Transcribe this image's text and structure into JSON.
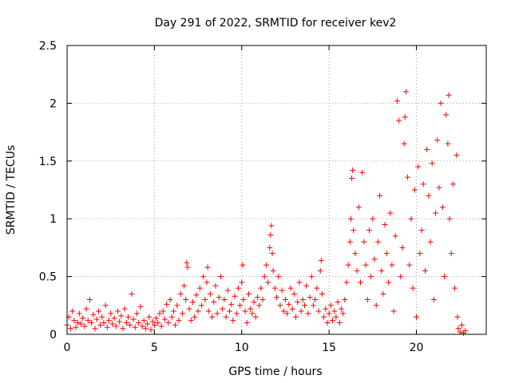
{
  "chart_data": {
    "type": "scatter",
    "title": "Day 291 of 2022, SRMTID for receiver kev2",
    "xlabel": "GPS time / hours",
    "ylabel": "SRMTID / TECUs",
    "xlim": [
      0,
      24
    ],
    "ylim": [
      0,
      2.5
    ],
    "xticks": [
      0,
      5,
      10,
      15,
      20
    ],
    "xtick_labels": [
      "0",
      "5",
      "10",
      "15",
      "20"
    ],
    "yticks": [
      0,
      0.5,
      1,
      1.5,
      2,
      2.5
    ],
    "ytick_labels": [
      "0",
      "0.5",
      "1",
      "1.5",
      "2",
      "2.5"
    ],
    "grid": true,
    "marker": "+",
    "color": "#ff0000",
    "series": [
      {
        "name": "SRMTID",
        "points": [
          [
            0.0,
            0.08
          ],
          [
            0.1,
            0.15
          ],
          [
            0.2,
            0.05
          ],
          [
            0.3,
            0.2
          ],
          [
            0.4,
            0.12
          ],
          [
            0.5,
            0.06
          ],
          [
            0.6,
            0.1
          ],
          [
            0.7,
            0.18
          ],
          [
            0.8,
            0.09
          ],
          [
            0.9,
            0.14
          ],
          [
            1.0,
            0.07
          ],
          [
            1.1,
            0.22
          ],
          [
            1.2,
            0.12
          ],
          [
            1.3,
            0.3
          ],
          [
            1.4,
            0.1
          ],
          [
            1.5,
            0.17
          ],
          [
            1.6,
            0.05
          ],
          [
            1.7,
            0.13
          ],
          [
            1.8,
            0.2
          ],
          [
            1.9,
            0.08
          ],
          [
            2.0,
            0.15
          ],
          [
            2.1,
            0.1
          ],
          [
            2.2,
            0.25
          ],
          [
            2.3,
            0.06
          ],
          [
            2.4,
            0.12
          ],
          [
            2.5,
            0.18
          ],
          [
            2.6,
            0.09
          ],
          [
            2.7,
            0.14
          ],
          [
            2.8,
            0.07
          ],
          [
            2.9,
            0.2
          ],
          [
            3.0,
            0.11
          ],
          [
            3.1,
            0.16
          ],
          [
            3.2,
            0.05
          ],
          [
            3.3,
            0.22
          ],
          [
            3.4,
            0.1
          ],
          [
            3.5,
            0.15
          ],
          [
            3.6,
            0.08
          ],
          [
            3.7,
            0.35
          ],
          [
            3.8,
            0.13
          ],
          [
            3.9,
            0.06
          ],
          [
            4.0,
            0.18
          ],
          [
            4.1,
            0.1
          ],
          [
            4.2,
            0.24
          ],
          [
            4.3,
            0.07
          ],
          [
            4.4,
            0.12
          ],
          [
            4.5,
            0.05
          ],
          [
            4.6,
            0.09
          ],
          [
            4.7,
            0.15
          ],
          [
            4.8,
            0.04
          ],
          [
            4.9,
            0.11
          ],
          [
            5.0,
            0.08
          ],
          [
            5.1,
            0.14
          ],
          [
            5.2,
            0.1
          ],
          [
            5.3,
            0.18
          ],
          [
            5.4,
            0.07
          ],
          [
            5.5,
            0.2
          ],
          [
            5.6,
            0.13
          ],
          [
            5.7,
            0.26
          ],
          [
            5.8,
            0.1
          ],
          [
            5.9,
            0.3
          ],
          [
            6.0,
            0.15
          ],
          [
            6.1,
            0.2
          ],
          [
            6.2,
            0.08
          ],
          [
            6.3,
            0.25
          ],
          [
            6.4,
            0.12
          ],
          [
            6.5,
            0.35
          ],
          [
            6.6,
            0.18
          ],
          [
            6.7,
            0.42
          ],
          [
            6.8,
            0.3
          ],
          [
            6.85,
            0.62
          ],
          [
            6.9,
            0.58
          ],
          [
            7.0,
            0.22
          ],
          [
            7.1,
            0.12
          ],
          [
            7.2,
            0.28
          ],
          [
            7.3,
            0.15
          ],
          [
            7.4,
            0.34
          ],
          [
            7.5,
            0.2
          ],
          [
            7.6,
            0.4
          ],
          [
            7.7,
            0.25
          ],
          [
            7.8,
            0.5
          ],
          [
            7.9,
            0.3
          ],
          [
            8.0,
            0.45
          ],
          [
            8.05,
            0.58
          ],
          [
            8.1,
            0.2
          ],
          [
            8.2,
            0.35
          ],
          [
            8.3,
            0.15
          ],
          [
            8.4,
            0.28
          ],
          [
            8.5,
            0.42
          ],
          [
            8.6,
            0.18
          ],
          [
            8.7,
            0.32
          ],
          [
            8.8,
            0.5
          ],
          [
            8.9,
            0.22
          ],
          [
            9.0,
            0.3
          ],
          [
            9.1,
            0.15
          ],
          [
            9.2,
            0.38
          ],
          [
            9.3,
            0.2
          ],
          [
            9.4,
            0.26
          ],
          [
            9.5,
            0.12
          ],
          [
            9.6,
            0.33
          ],
          [
            9.7,
            0.18
          ],
          [
            9.8,
            0.4
          ],
          [
            9.9,
            0.25
          ],
          [
            10.0,
            0.45
          ],
          [
            10.05,
            0.6
          ],
          [
            10.1,
            0.3
          ],
          [
            10.2,
            0.2
          ],
          [
            10.3,
            0.1
          ],
          [
            10.4,
            0.35
          ],
          [
            10.5,
            0.22
          ],
          [
            10.6,
            0.18
          ],
          [
            10.7,
            0.28
          ],
          [
            10.8,
            0.15
          ],
          [
            10.9,
            0.32
          ],
          [
            11.0,
            0.25
          ],
          [
            11.1,
            0.4
          ],
          [
            11.2,
            0.3
          ],
          [
            11.3,
            0.5
          ],
          [
            11.4,
            0.6
          ],
          [
            11.5,
            0.45
          ],
          [
            11.6,
            0.75
          ],
          [
            11.65,
            0.86
          ],
          [
            11.7,
            0.94
          ],
          [
            11.75,
            0.7
          ],
          [
            11.8,
            0.55
          ],
          [
            11.9,
            0.4
          ],
          [
            12.0,
            0.32
          ],
          [
            12.1,
            0.5
          ],
          [
            12.2,
            0.25
          ],
          [
            12.3,
            0.38
          ],
          [
            12.4,
            0.2
          ],
          [
            12.5,
            0.3
          ],
          [
            12.6,
            0.18
          ],
          [
            12.7,
            0.26
          ],
          [
            12.8,
            0.4
          ],
          [
            12.9,
            0.22
          ],
          [
            13.0,
            0.35
          ],
          [
            13.1,
            0.15
          ],
          [
            13.2,
            0.28
          ],
          [
            13.3,
            0.45
          ],
          [
            13.4,
            0.2
          ],
          [
            13.5,
            0.3
          ],
          [
            13.6,
            0.25
          ],
          [
            13.7,
            0.42
          ],
          [
            13.8,
            0.18
          ],
          [
            13.9,
            0.32
          ],
          [
            14.0,
            0.5
          ],
          [
            14.1,
            0.25
          ],
          [
            14.2,
            0.3
          ],
          [
            14.3,
            0.4
          ],
          [
            14.4,
            0.2
          ],
          [
            14.5,
            0.55
          ],
          [
            14.55,
            0.64
          ],
          [
            14.6,
            0.35
          ],
          [
            14.7,
            0.15
          ],
          [
            14.8,
            0.22
          ],
          [
            14.9,
            0.1
          ],
          [
            15.0,
            0.18
          ],
          [
            15.1,
            0.25
          ],
          [
            15.2,
            0.12
          ],
          [
            15.3,
            0.2
          ],
          [
            15.4,
            0.15
          ],
          [
            15.5,
            0.28
          ],
          [
            15.6,
            0.1
          ],
          [
            15.7,
            0.22
          ],
          [
            15.8,
            0.18
          ],
          [
            15.9,
            0.3
          ],
          [
            16.0,
            0.45
          ],
          [
            16.1,
            0.6
          ],
          [
            16.2,
            0.8
          ],
          [
            16.25,
            1.0
          ],
          [
            16.3,
            1.35
          ],
          [
            16.35,
            1.42
          ],
          [
            16.4,
            0.9
          ],
          [
            16.5,
            0.7
          ],
          [
            16.6,
            0.55
          ],
          [
            16.7,
            1.1
          ],
          [
            16.8,
            0.45
          ],
          [
            16.9,
            1.4
          ],
          [
            17.0,
            0.8
          ],
          [
            17.1,
            0.6
          ],
          [
            17.2,
            0.3
          ],
          [
            17.3,
            0.9
          ],
          [
            17.4,
            0.5
          ],
          [
            17.5,
            1.0
          ],
          [
            17.6,
            0.65
          ],
          [
            17.7,
            0.25
          ],
          [
            17.8,
            0.8
          ],
          [
            17.9,
            1.2
          ],
          [
            18.0,
            0.55
          ],
          [
            18.1,
            0.35
          ],
          [
            18.2,
            0.95
          ],
          [
            18.3,
            0.7
          ],
          [
            18.4,
            0.45
          ],
          [
            18.5,
            1.05
          ],
          [
            18.6,
            0.6
          ],
          [
            18.7,
            0.2
          ],
          [
            18.8,
            0.85
          ],
          [
            18.9,
            2.02
          ],
          [
            19.0,
            1.85
          ],
          [
            19.1,
            0.5
          ],
          [
            19.2,
            0.75
          ],
          [
            19.3,
            1.65
          ],
          [
            19.35,
            1.88
          ],
          [
            19.4,
            2.1
          ],
          [
            19.5,
            1.36
          ],
          [
            19.6,
            0.6
          ],
          [
            19.7,
            1.0
          ],
          [
            19.8,
            0.4
          ],
          [
            19.9,
            1.25
          ],
          [
            20.0,
            0.15
          ],
          [
            20.1,
            1.45
          ],
          [
            20.2,
            0.7
          ],
          [
            20.3,
            0.9
          ],
          [
            20.4,
            1.3
          ],
          [
            20.5,
            0.55
          ],
          [
            20.6,
            1.6
          ],
          [
            20.7,
            1.2
          ],
          [
            20.8,
            0.8
          ],
          [
            20.9,
            1.48
          ],
          [
            21.0,
            0.3
          ],
          [
            21.1,
            1.05
          ],
          [
            21.2,
            1.68
          ],
          [
            21.3,
            1.27
          ],
          [
            21.4,
            2.0
          ],
          [
            21.5,
            1.1
          ],
          [
            21.6,
            0.5
          ],
          [
            21.7,
            1.9
          ],
          [
            21.8,
            1.65
          ],
          [
            21.85,
            2.07
          ],
          [
            21.9,
            1.0
          ],
          [
            22.0,
            0.7
          ],
          [
            22.1,
            1.3
          ],
          [
            22.2,
            0.4
          ],
          [
            22.3,
            1.55
          ],
          [
            22.35,
            0.15
          ],
          [
            22.4,
            0.05
          ],
          [
            22.5,
            0.02
          ],
          [
            22.6,
            0.08
          ],
          [
            22.7,
            0.01
          ],
          [
            22.8,
            0.03
          ]
        ]
      }
    ]
  }
}
